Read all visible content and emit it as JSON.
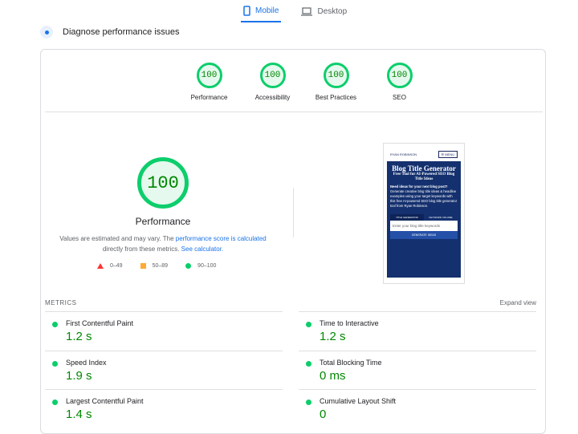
{
  "device_tabs": [
    {
      "label": "Mobile",
      "icon": "smartphone-icon",
      "active": true
    },
    {
      "label": "Desktop",
      "icon": "laptop-icon",
      "active": false
    }
  ],
  "diagnose_title": "Diagnose performance issues",
  "categories": [
    {
      "score": "100",
      "label": "Performance"
    },
    {
      "score": "100",
      "label": "Accessibility"
    },
    {
      "score": "100",
      "label": "Best Practices"
    },
    {
      "score": "100",
      "label": "SEO"
    }
  ],
  "main_score": {
    "score": "100",
    "label": "Performance",
    "note_prefix": "Values are estimated and may vary. The ",
    "note_link1": "performance score is calculated",
    "note_mid": " directly from these metrics. ",
    "note_link2": "See calculator."
  },
  "legend": [
    {
      "range": "0–49",
      "color": "#ff3333"
    },
    {
      "range": "50–89",
      "color": "#ffaa33"
    },
    {
      "range": "90–100",
      "color": "#0cce6b"
    }
  ],
  "screenshot": {
    "logo": "RYAN ROBINSON",
    "menu": "☰ MENU",
    "title": "Blog Title Generator",
    "subtitle": "Free Tool for AI-Powered SEO Blog Title Ideas",
    "heading": "Need ideas for your next blog post?",
    "text": "Generate creative blog title ideas & headline examples using your target keywords with this free AI-powered SEO blog title generator tool from Ryan Robinson.",
    "tab1": "TITLE GENERATOR",
    "tab2": "KEYWORD VOLUME",
    "input_placeholder": "Enter your blog title keywords",
    "button": "GENERATE IDEAS"
  },
  "metrics_header": "METRICS",
  "expand_view": "Expand view",
  "metrics": [
    {
      "name": "First Contentful Paint",
      "value": "1.2 s"
    },
    {
      "name": "Time to Interactive",
      "value": "1.2 s"
    },
    {
      "name": "Speed Index",
      "value": "1.9 s"
    },
    {
      "name": "Total Blocking Time",
      "value": "0 ms"
    },
    {
      "name": "Largest Contentful Paint",
      "value": "1.4 s"
    },
    {
      "name": "Cumulative Layout Shift",
      "value": "0"
    }
  ],
  "colors": {
    "accent": "#1a73e8",
    "pass": "#0cce6b",
    "pass_text": "#008800"
  }
}
